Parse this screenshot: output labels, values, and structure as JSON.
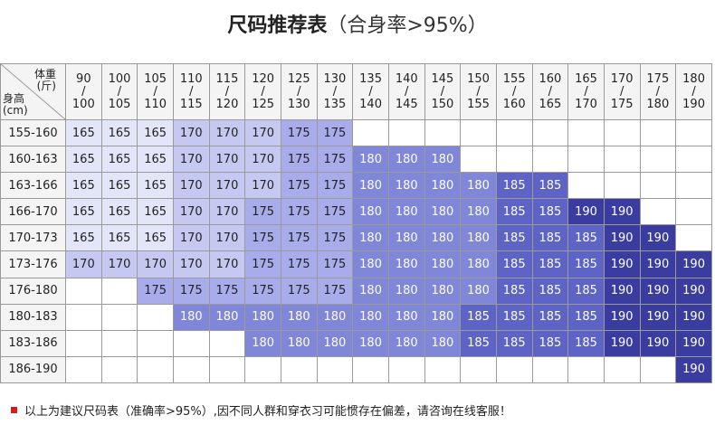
{
  "title": {
    "main": "尺码推荐表",
    "sub": "（合身率>95%）"
  },
  "corner": {
    "weight_label": "体重",
    "weight_unit": "(斤)",
    "height_label": "身高",
    "height_unit": "(cm)"
  },
  "weight_ranges": [
    {
      "top": "90",
      "bottom": "100"
    },
    {
      "top": "100",
      "bottom": "105"
    },
    {
      "top": "105",
      "bottom": "110"
    },
    {
      "top": "110",
      "bottom": "115"
    },
    {
      "top": "115",
      "bottom": "120"
    },
    {
      "top": "120",
      "bottom": "125"
    },
    {
      "top": "125",
      "bottom": "130"
    },
    {
      "top": "130",
      "bottom": "135"
    },
    {
      "top": "135",
      "bottom": "140"
    },
    {
      "top": "140",
      "bottom": "145"
    },
    {
      "top": "145",
      "bottom": "150"
    },
    {
      "top": "150",
      "bottom": "155"
    },
    {
      "top": "155",
      "bottom": "160"
    },
    {
      "top": "160",
      "bottom": "165"
    },
    {
      "top": "165",
      "bottom": "170"
    },
    {
      "top": "170",
      "bottom": "175"
    },
    {
      "top": "175",
      "bottom": "180"
    },
    {
      "top": "180",
      "bottom": "190"
    }
  ],
  "rows": [
    {
      "height": "155-160",
      "sizes": [
        "165",
        "165",
        "165",
        "170",
        "170",
        "170",
        "175",
        "175",
        "",
        "",
        "",
        "",
        "",
        "",
        "",
        "",
        "",
        ""
      ]
    },
    {
      "height": "160-163",
      "sizes": [
        "165",
        "165",
        "165",
        "170",
        "170",
        "170",
        "175",
        "175",
        "180",
        "180",
        "180",
        "",
        "",
        "",
        "",
        "",
        "",
        ""
      ]
    },
    {
      "height": "163-166",
      "sizes": [
        "165",
        "165",
        "165",
        "170",
        "170",
        "170",
        "175",
        "175",
        "180",
        "180",
        "180",
        "180",
        "185",
        "185",
        "",
        "",
        "",
        ""
      ]
    },
    {
      "height": "166-170",
      "sizes": [
        "165",
        "165",
        "165",
        "170",
        "170",
        "175",
        "175",
        "175",
        "180",
        "180",
        "180",
        "180",
        "185",
        "185",
        "190",
        "190",
        "",
        ""
      ]
    },
    {
      "height": "170-173",
      "sizes": [
        "165",
        "165",
        "165",
        "170",
        "170",
        "175",
        "175",
        "175",
        "180",
        "180",
        "180",
        "180",
        "185",
        "185",
        "185",
        "190",
        "190",
        ""
      ]
    },
    {
      "height": "173-176",
      "sizes": [
        "170",
        "170",
        "170",
        "170",
        "170",
        "175",
        "175",
        "175",
        "180",
        "180",
        "180",
        "180",
        "185",
        "185",
        "185",
        "190",
        "190",
        "190"
      ]
    },
    {
      "height": "176-180",
      "sizes": [
        "",
        "",
        "175",
        "175",
        "175",
        "175",
        "175",
        "175",
        "180",
        "180",
        "180",
        "180",
        "185",
        "185",
        "185",
        "190",
        "190",
        "190"
      ]
    },
    {
      "height": "180-183",
      "sizes": [
        "",
        "",
        "",
        "180",
        "180",
        "180",
        "180",
        "180",
        "180",
        "180",
        "180",
        "185",
        "185",
        "185",
        "185",
        "190",
        "190",
        "190"
      ]
    },
    {
      "height": "183-186",
      "sizes": [
        "",
        "",
        "",
        "",
        "",
        "180",
        "180",
        "180",
        "180",
        "180",
        "180",
        "185",
        "185",
        "185",
        "185",
        "190",
        "190",
        "190"
      ]
    },
    {
      "height": "186-190",
      "sizes": [
        "",
        "",
        "",
        "",
        "",
        "",
        "",
        "",
        "",
        "",
        "",
        "",
        "",
        "",
        "",
        "",
        "",
        "190"
      ]
    }
  ],
  "size_colors": {
    "165": "#e3e5f8",
    "170": "#c5c9f1",
    "175": "#a8acea",
    "180": "#8087d8",
    "185": "#5d64c6",
    "190": "#3a3d9f"
  },
  "text_colors": {
    "165": "#222222",
    "170": "#222222",
    "175": "#222222",
    "180": "#ffffff",
    "185": "#ffffff",
    "190": "#ffffff"
  },
  "note": "以上为建议尺码表（准确率>95%）,因不同人群和穿衣习可能惯存在偏差，请咨询在线客服！",
  "accent": "#d21e1e"
}
